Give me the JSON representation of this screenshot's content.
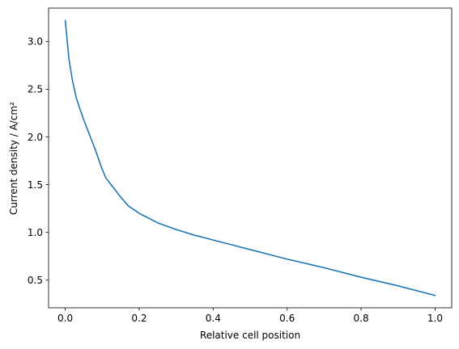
{
  "chart_data": {
    "type": "line",
    "title": "",
    "xlabel": "Relative cell position",
    "ylabel": "Current density / A/cm²",
    "xlim": [
      -0.045,
      1.045
    ],
    "ylim": [
      0.21,
      3.35
    ],
    "grid": false,
    "xticks": [
      0.0,
      0.2,
      0.4,
      0.6,
      0.8,
      1.0
    ],
    "xtick_labels": [
      "0.0",
      "0.2",
      "0.4",
      "0.6",
      "0.8",
      "1.0"
    ],
    "yticks": [
      0.5,
      1.0,
      1.5,
      2.0,
      2.5,
      3.0
    ],
    "ytick_labels": [
      "0.5",
      "1.0",
      "1.5",
      "2.0",
      "2.5",
      "3.0"
    ],
    "series": [
      {
        "color": "#1f77b4",
        "x": [
          0.0,
          0.01,
          0.02,
          0.03,
          0.04,
          0.05,
          0.06,
          0.07,
          0.08,
          0.09,
          0.1,
          0.11,
          0.13,
          0.15,
          0.17,
          0.2,
          0.22,
          0.25,
          0.3,
          0.35,
          0.4,
          0.45,
          0.5,
          0.6,
          0.7,
          0.8,
          0.9,
          1.0
        ],
        "y": [
          3.22,
          2.82,
          2.58,
          2.41,
          2.29,
          2.18,
          2.08,
          1.98,
          1.88,
          1.77,
          1.66,
          1.57,
          1.47,
          1.37,
          1.28,
          1.2,
          1.16,
          1.1,
          1.03,
          0.97,
          0.92,
          0.87,
          0.82,
          0.72,
          0.63,
          0.53,
          0.44,
          0.34
        ]
      }
    ]
  }
}
